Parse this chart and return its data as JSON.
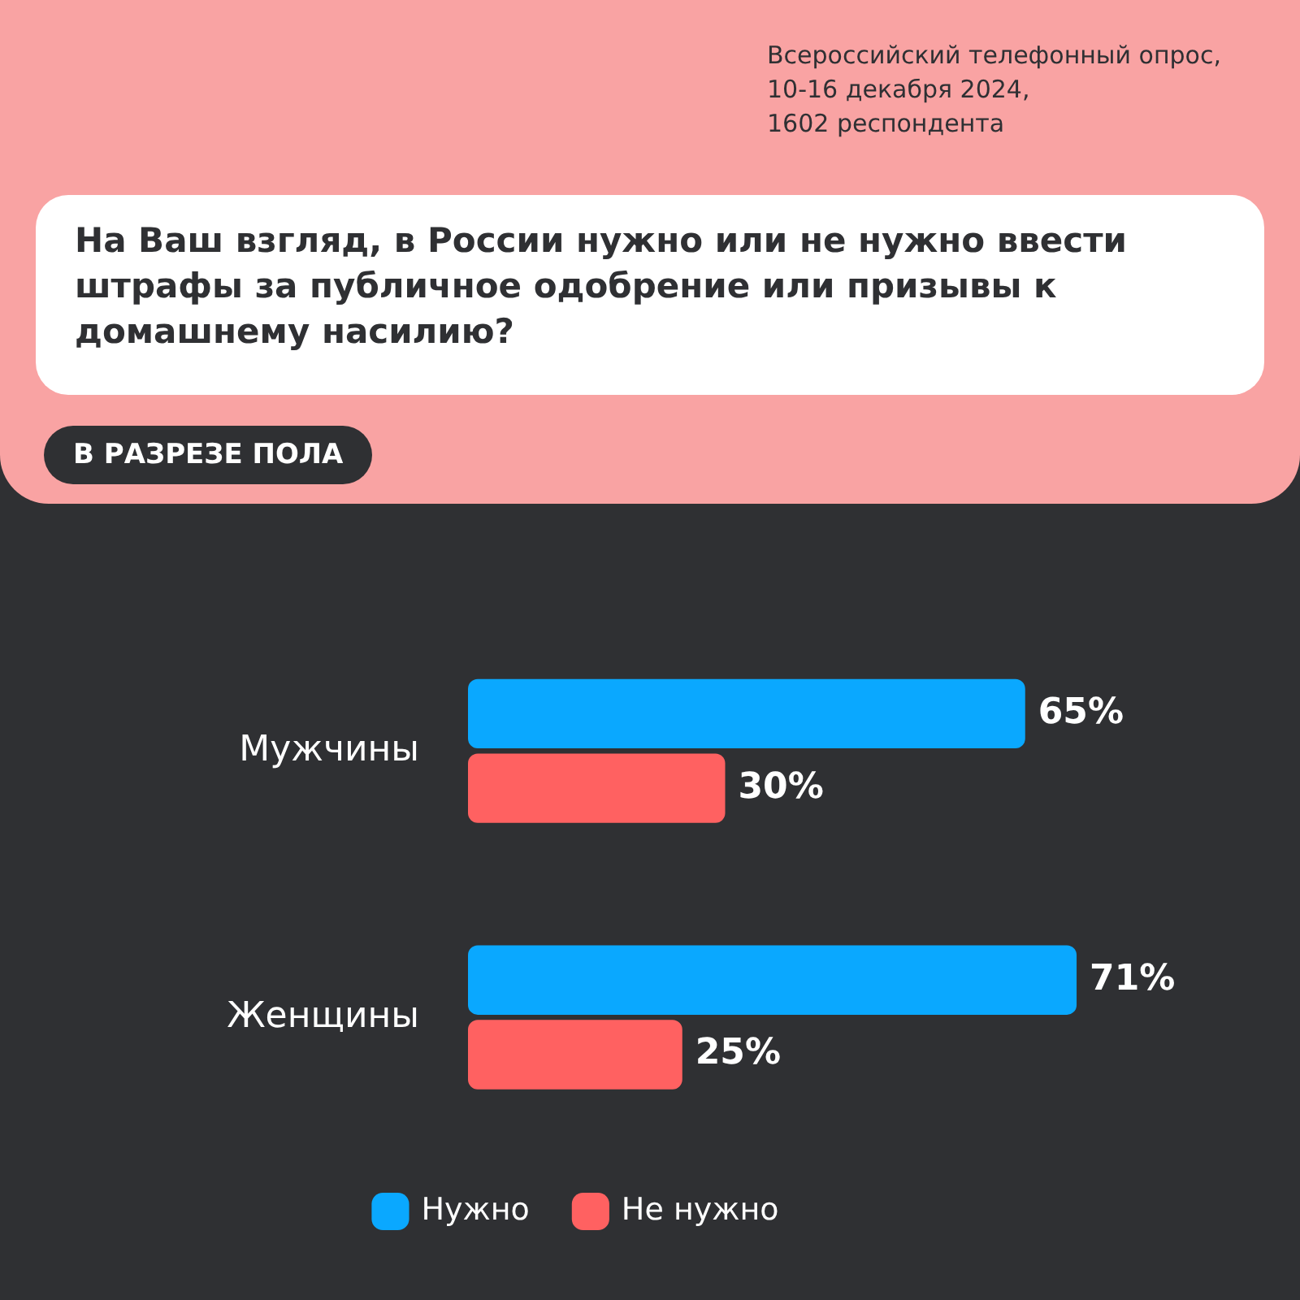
{
  "chart_data": {
    "type": "bar",
    "orientation": "horizontal",
    "title": "На Ваш взгляд, в России нужно или не нужно ввести штрафы за публичное одобрение или призывы к домашнему насилию?",
    "subtitle": "В РАЗРЕЗЕ ПОЛА",
    "annotations": [
      "Всероссийский телефонный опрос,\n10-16 декабря 2024,\n1602 респондента"
    ],
    "categories": [
      "Мужчины",
      "Женщины"
    ],
    "series": [
      {
        "name": "Нужно",
        "color": "#0aa8ff",
        "values": [
          65,
          71
        ],
        "value_labels": [
          "65%",
          "71%"
        ]
      },
      {
        "name": "Не нужно",
        "color": "#ff6161",
        "values": [
          30,
          25
        ],
        "value_labels": [
          "30%",
          "25%"
        ]
      }
    ],
    "tick_labels": "y",
    "grid": false,
    "legend": "bottom"
  }
}
